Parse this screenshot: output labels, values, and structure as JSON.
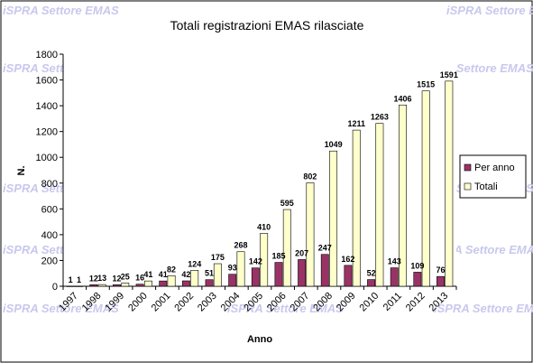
{
  "watermark": "iSPRA Settore EMAS",
  "chart_data": {
    "type": "bar",
    "title": "Totali registrazioni EMAS rilasciate",
    "xlabel": "Anno",
    "ylabel": "N.",
    "ylim": [
      0,
      1800
    ],
    "yticks": [
      0,
      200,
      400,
      600,
      800,
      1000,
      1200,
      1400,
      1600,
      1800
    ],
    "grid": false,
    "legend_position": "right",
    "categories": [
      "1997",
      "1998",
      "1999",
      "2000",
      "2001",
      "2002",
      "2003",
      "2004",
      "2005",
      "2006",
      "2007",
      "2008",
      "2009",
      "2010",
      "2011",
      "2012",
      "2013"
    ],
    "series": [
      {
        "name": "Per anno",
        "color": "#993366",
        "values": [
          1,
          12,
          12,
          16,
          41,
          42,
          51,
          93,
          142,
          185,
          207,
          247,
          162,
          52,
          143,
          109,
          76
        ]
      },
      {
        "name": "Totali",
        "color": "#ffffcc",
        "values": [
          1,
          13,
          25,
          41,
          82,
          124,
          175,
          268,
          410,
          595,
          802,
          1049,
          1211,
          1263,
          1406,
          1515,
          1591
        ]
      }
    ]
  }
}
